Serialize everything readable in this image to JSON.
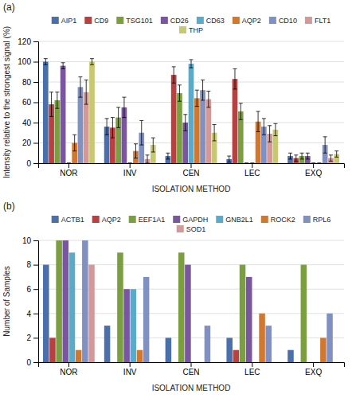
{
  "chart_data": [
    {
      "type": "bar",
      "title": "(a)",
      "xlabel": "ISOLATION METHOD",
      "ylabel": "Intensity relative to the strongest signal (%)",
      "categories": [
        "NOR",
        "INV",
        "CEN",
        "LEC",
        "EXQ"
      ],
      "series": [
        {
          "name": "AIP1",
          "color": "#4a6faa",
          "values": [
            100,
            36,
            7,
            4,
            7
          ],
          "errors": [
            3,
            8,
            3,
            3,
            3
          ]
        },
        {
          "name": "CD9",
          "color": "#b84040",
          "values": [
            58,
            35,
            87,
            83,
            5
          ],
          "errors": [
            12,
            10,
            8,
            10,
            3
          ]
        },
        {
          "name": "TSG101",
          "color": "#7a9e40",
          "values": [
            62,
            45,
            69,
            51,
            7
          ],
          "errors": [
            8,
            10,
            8,
            8,
            3
          ]
        },
        {
          "name": "CD26",
          "color": "#7a55a0",
          "values": [
            96,
            55,
            40,
            0,
            7
          ],
          "errors": [
            3,
            10,
            8,
            0,
            3
          ]
        },
        {
          "name": "CD63",
          "color": "#5aabca",
          "values": [
            0,
            0,
            98,
            0,
            0
          ],
          "errors": [
            0,
            0,
            4,
            0,
            0
          ]
        },
        {
          "name": "AQP2",
          "color": "#d07830",
          "values": [
            20,
            12,
            64,
            41,
            0
          ],
          "errors": [
            8,
            7,
            8,
            10,
            0
          ]
        },
        {
          "name": "CD10",
          "color": "#8090c0",
          "values": [
            75,
            30,
            72,
            36,
            18
          ],
          "errors": [
            10,
            12,
            10,
            8,
            8
          ]
        },
        {
          "name": "FLT1",
          "color": "#d49898",
          "values": [
            70,
            4,
            63,
            29,
            5
          ],
          "errors": [
            12,
            4,
            8,
            8,
            3
          ]
        },
        {
          "name": "THP",
          "color": "#c8c870",
          "values": [
            100,
            18,
            30,
            33,
            9
          ],
          "errors": [
            3,
            7,
            8,
            6,
            3
          ]
        }
      ],
      "ylim": [
        0,
        120
      ],
      "yticks": [
        0,
        20,
        40,
        60,
        80,
        100,
        120
      ],
      "grid": true,
      "legend": "top"
    },
    {
      "type": "bar",
      "title": "(b)",
      "xlabel": "ISOLATION METHOD",
      "ylabel": "Number of Samples",
      "categories": [
        "NOR",
        "INV",
        "CEN",
        "LEC",
        "EXQ"
      ],
      "series": [
        {
          "name": "ACTB1",
          "color": "#4a6faa",
          "values": [
            8,
            3,
            2,
            2,
            1
          ]
        },
        {
          "name": "AQP2",
          "color": "#b84040",
          "values": [
            2,
            0,
            0,
            1,
            0
          ]
        },
        {
          "name": "EEF1A1",
          "color": "#7a9e40",
          "values": [
            10,
            9,
            9,
            8,
            8
          ]
        },
        {
          "name": "GAPDH",
          "color": "#7a55a0",
          "values": [
            10,
            6,
            8,
            7,
            0
          ]
        },
        {
          "name": "GNB2L1",
          "color": "#5aabca",
          "values": [
            9,
            6,
            0,
            0,
            0
          ]
        },
        {
          "name": "ROCK2",
          "color": "#d07830",
          "values": [
            1,
            1,
            0,
            4,
            2
          ]
        },
        {
          "name": "RPL6",
          "color": "#8090c0",
          "values": [
            10,
            7,
            3,
            3,
            4
          ]
        },
        {
          "name": "SOD1",
          "color": "#d49898",
          "values": [
            8,
            0,
            0,
            0,
            0
          ]
        }
      ],
      "ylim": [
        0,
        10
      ],
      "yticks": [
        0,
        2,
        4,
        6,
        8,
        10
      ],
      "grid": true,
      "legend": "top"
    }
  ]
}
